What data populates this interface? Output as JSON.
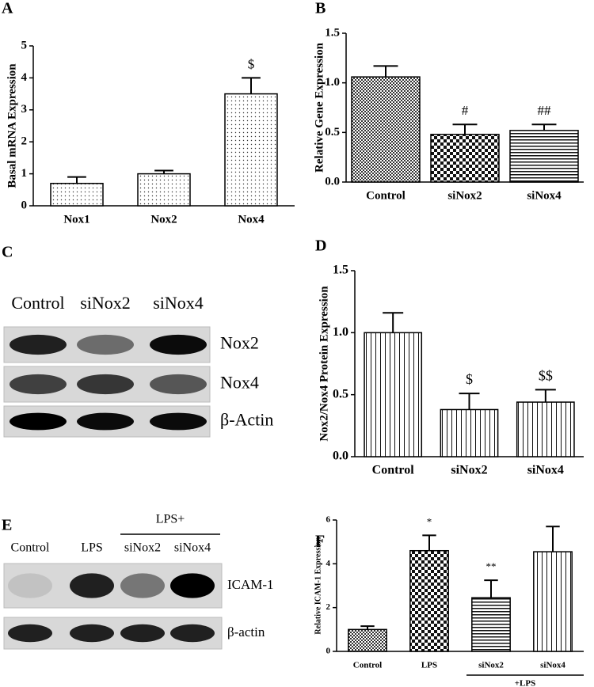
{
  "chart_data": [
    {
      "type": "bar",
      "panel": "A",
      "ylabel": "Basal mRNA Expression",
      "categories": [
        "Nox1",
        "Nox2",
        "Nox4"
      ],
      "values": [
        0.7,
        1.0,
        3.5
      ],
      "errors": [
        0.2,
        0.1,
        0.5
      ],
      "annotations": [
        null,
        null,
        "$"
      ],
      "patterns": [
        "dots",
        "dots",
        "dots"
      ],
      "ylim": [
        0,
        5
      ],
      "yticks": [
        0,
        1,
        2,
        3,
        4,
        5
      ]
    },
    {
      "type": "bar",
      "panel": "B",
      "ylabel": "Relative Gene Expression",
      "categories": [
        "Control",
        "siNox2",
        "siNox4"
      ],
      "values": [
        1.06,
        0.48,
        0.52
      ],
      "errors": [
        0.11,
        0.1,
        0.06
      ],
      "annotations": [
        null,
        "#",
        "##"
      ],
      "patterns": [
        "fine-checker",
        "checker",
        "hlines"
      ],
      "ylim": [
        0,
        1.5
      ],
      "yticks": [
        {
          "value": 0,
          "label": "0.0"
        },
        0.5,
        {
          "value": 1,
          "label": "1.0"
        },
        1.5
      ]
    },
    {
      "type": "bar",
      "panel": "D",
      "ylabel": "Nox2/Nox4 Protein Expression",
      "categories": [
        "Control",
        "siNox2",
        "siNox4"
      ],
      "values": [
        1.0,
        0.38,
        0.44
      ],
      "errors": [
        0.16,
        0.13,
        0.1
      ],
      "annotations": [
        null,
        "$",
        "$$"
      ],
      "patterns": [
        "vlines",
        "vlines",
        "vlines"
      ],
      "ylim": [
        0,
        1.5
      ],
      "yticks": [
        {
          "value": 0,
          "label": "0.0"
        },
        0.5,
        {
          "value": 1,
          "label": "1.0"
        },
        1.5
      ]
    },
    {
      "type": "bar",
      "panel": "F",
      "ylabel": "Relative ICAM-1 Expression",
      "categories": [
        "Control",
        "LPS",
        "siNox2",
        "siNox4"
      ],
      "values": [
        1.0,
        4.6,
        2.45,
        4.55
      ],
      "errors": [
        0.15,
        0.7,
        0.8,
        1.15
      ],
      "annotations": [
        null,
        "*",
        "**",
        null
      ],
      "patterns": [
        "fine-checker",
        "checker",
        "hlines",
        "vlines"
      ],
      "group_label": "+LPS",
      "ylim": [
        0,
        6
      ],
      "yticks": [
        0,
        2,
        4,
        6
      ]
    }
  ],
  "blots": [
    {
      "panel": "C",
      "columns": [
        "Control",
        "siNox2",
        "siNox4"
      ],
      "rows": [
        "Nox2",
        "Nox4",
        "β-Actin"
      ]
    },
    {
      "panel": "E",
      "group": "LPS+",
      "columns": [
        "Control",
        "LPS",
        "siNox2",
        "siNox4"
      ],
      "rows": [
        "ICAM-1",
        "β-actin"
      ]
    }
  ]
}
